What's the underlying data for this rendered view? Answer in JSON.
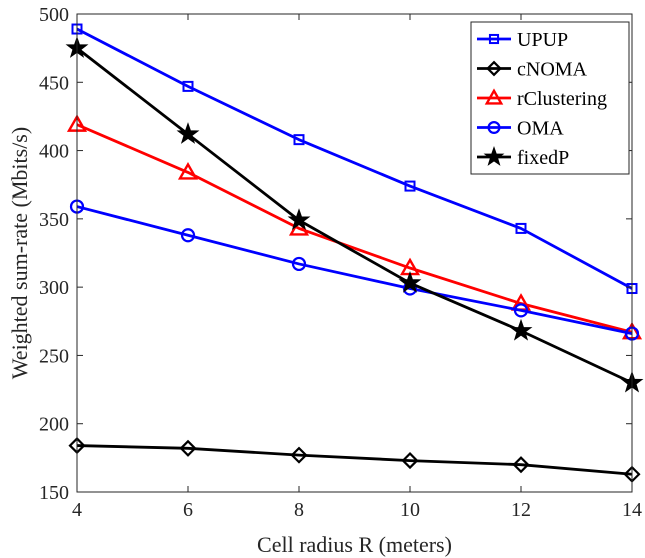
{
  "chart_data": {
    "type": "line",
    "title": "",
    "xlabel": "Cell radius R (meters)",
    "ylabel": "Weighted sum-rate (Mbits/s)",
    "xlim": [
      4,
      14
    ],
    "ylim": [
      150,
      500
    ],
    "x_ticks": [
      4,
      6,
      8,
      10,
      12,
      14
    ],
    "y_ticks": [
      150,
      200,
      250,
      300,
      350,
      400,
      450,
      500
    ],
    "grid": false,
    "legend_position": "top-right",
    "x": [
      4,
      6,
      8,
      10,
      12,
      14
    ],
    "series": [
      {
        "name": "UPUP",
        "values": [
          489,
          447,
          408,
          374,
          343,
          299
        ],
        "color": "#0000ff",
        "marker": "square"
      },
      {
        "name": "cNOMA",
        "values": [
          184,
          182,
          177,
          173,
          170,
          163
        ],
        "color": "#000000",
        "marker": "diamond"
      },
      {
        "name": "rClustering",
        "values": [
          419,
          384,
          343,
          314,
          288,
          267
        ],
        "color": "#ff0000",
        "marker": "triangle"
      },
      {
        "name": "OMA",
        "values": [
          359,
          338,
          317,
          299,
          283,
          266
        ],
        "color": "#0000ff",
        "marker": "circle"
      },
      {
        "name": "fixedP",
        "values": [
          475,
          412,
          349,
          303,
          268,
          230
        ],
        "color": "#000000",
        "marker": "star"
      }
    ]
  }
}
